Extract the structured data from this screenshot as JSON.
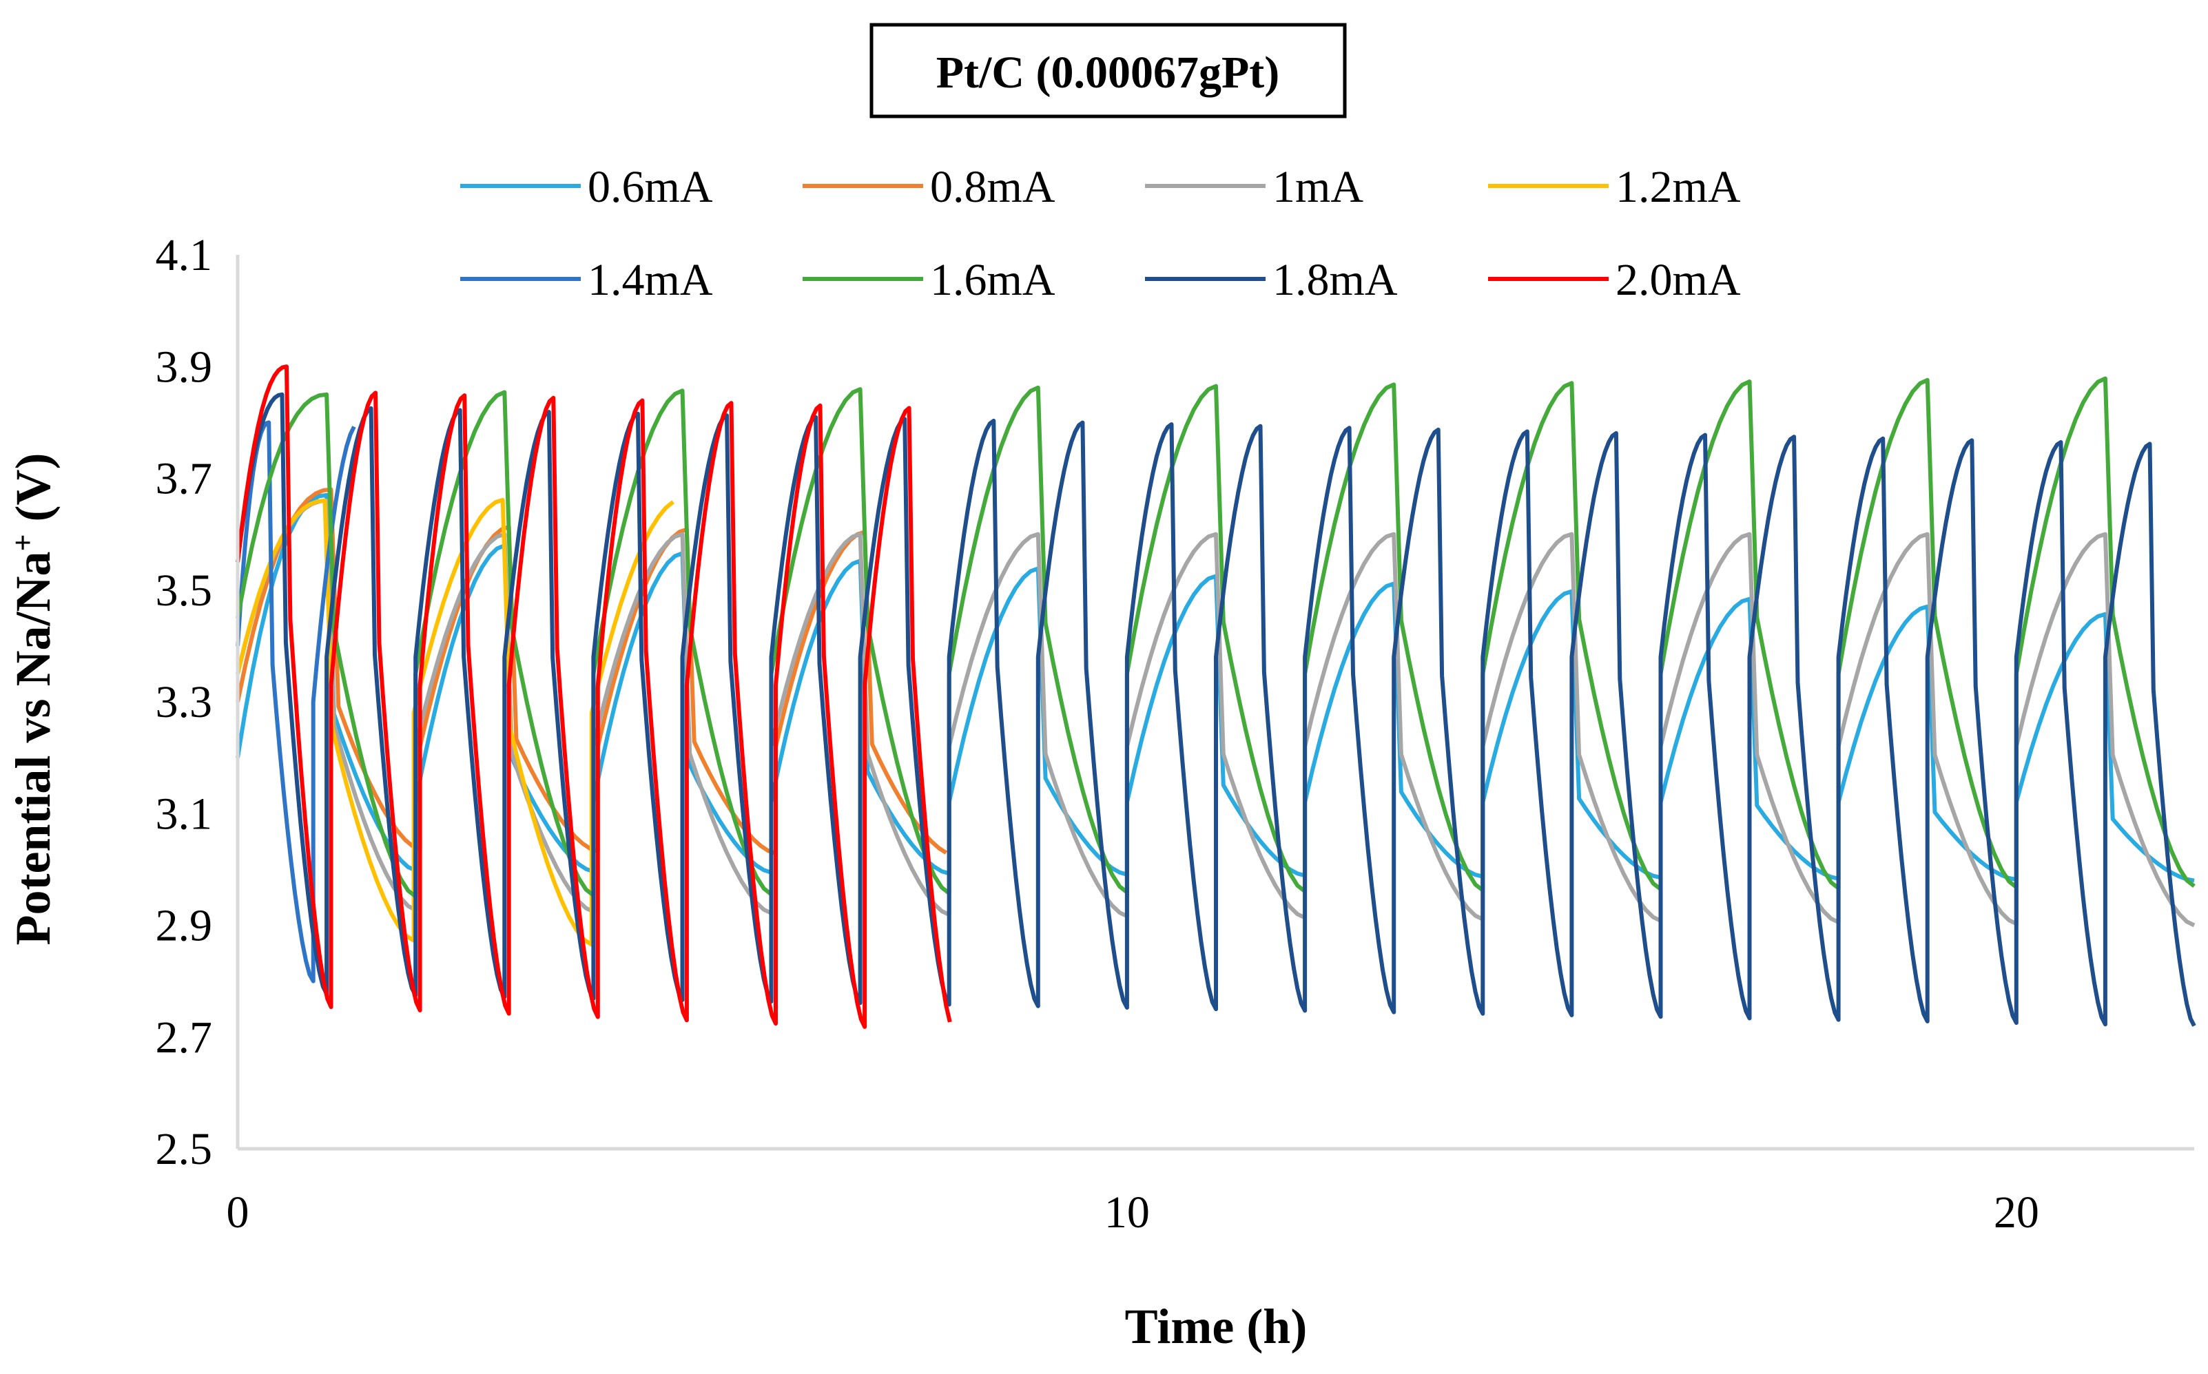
{
  "chart_data": {
    "type": "line",
    "title": "Pt/C (0.00067gPt)",
    "xlabel": "Time (h)",
    "ylabel_main": "Potential vs Na/Na",
    "ylabel_sup": "+",
    "ylabel_tail": " (V)",
    "xlim": [
      0,
      22
    ],
    "ylim": [
      2.5,
      4.1
    ],
    "xticks": [
      0,
      10,
      20
    ],
    "yticks": [
      2.5,
      2.7,
      2.9,
      3.1,
      3.3,
      3.5,
      3.7,
      3.9,
      4.1
    ],
    "ytick_labels": [
      "2.5",
      "2.7",
      "2.9",
      "3.1",
      "3.3",
      "3.5",
      "3.7",
      "3.9",
      "4.1"
    ],
    "xtick_labels": [
      "0",
      "10",
      "20"
    ],
    "grid": false,
    "legend_position": "top",
    "series": [
      {
        "name": "0.6mA",
        "color": "#29ABE2",
        "period": 2.0,
        "start": 3.2,
        "first_peak": 3.67,
        "peak_start": 3.6,
        "peak_end": 3.45,
        "jump_v": 3.12,
        "trough_start": 3.0,
        "trough_end": 2.98,
        "phase": 1.0
      },
      {
        "name": "0.8mA",
        "color": "#F07F2E",
        "period": 2.0,
        "start": 3.3,
        "first_peak": 3.68,
        "peak_start": 3.62,
        "peak_end": 3.57,
        "jump_v": 3.22,
        "trough_start": 3.04,
        "trough_end": 3.0,
        "phase": 1.05
      },
      {
        "name": "1mA",
        "color": "#A6A6A6",
        "period": 2.0,
        "start": 3.35,
        "first_peak": 3.66,
        "peak_start": 3.6,
        "peak_end": 3.6,
        "jump_v": 3.22,
        "trough_start": 2.93,
        "trough_end": 2.9,
        "phase": 1.0
      },
      {
        "name": "1.2mA",
        "color": "#FFC000",
        "period": 2.0,
        "start": 3.35,
        "first_peak": 3.66,
        "peak_start": 3.66,
        "peak_end": 3.67,
        "jump_v": 3.28,
        "trough_start": 2.88,
        "trough_end": 2.8,
        "phase": 0.98
      },
      {
        "name": "1.4mA",
        "color": "#2E75C8",
        "period": 1.0,
        "start": 3.4,
        "first_peak": 3.8,
        "peak_start": 3.8,
        "peak_end": 3.77,
        "jump_v": 3.3,
        "trough_start": 2.8,
        "trough_end": 2.8,
        "phase": 0.35
      },
      {
        "name": "1.6mA",
        "color": "#44AA3A",
        "period": 2.0,
        "start": 3.45,
        "first_peak": 3.85,
        "peak_start": 3.85,
        "peak_end": 3.88,
        "jump_v": 3.35,
        "trough_start": 2.95,
        "trough_end": 2.97,
        "phase": 1.0
      },
      {
        "name": "1.8mA",
        "color": "#1F4E8C",
        "period": 1.0,
        "start": 3.55,
        "first_peak": 3.85,
        "peak_start": 3.83,
        "peak_end": 3.76,
        "jump_v": 3.38,
        "trough_start": 2.78,
        "trough_end": 2.72,
        "phase": 0.5
      },
      {
        "name": "2.0mA",
        "color": "#FF0000",
        "period": 1.0,
        "start": 3.55,
        "first_peak": 3.9,
        "peak_start": 3.86,
        "peak_end": 3.76,
        "jump_v": 3.33,
        "trough_start": 2.76,
        "trough_end": 2.63,
        "phase": 0.55
      }
    ]
  }
}
